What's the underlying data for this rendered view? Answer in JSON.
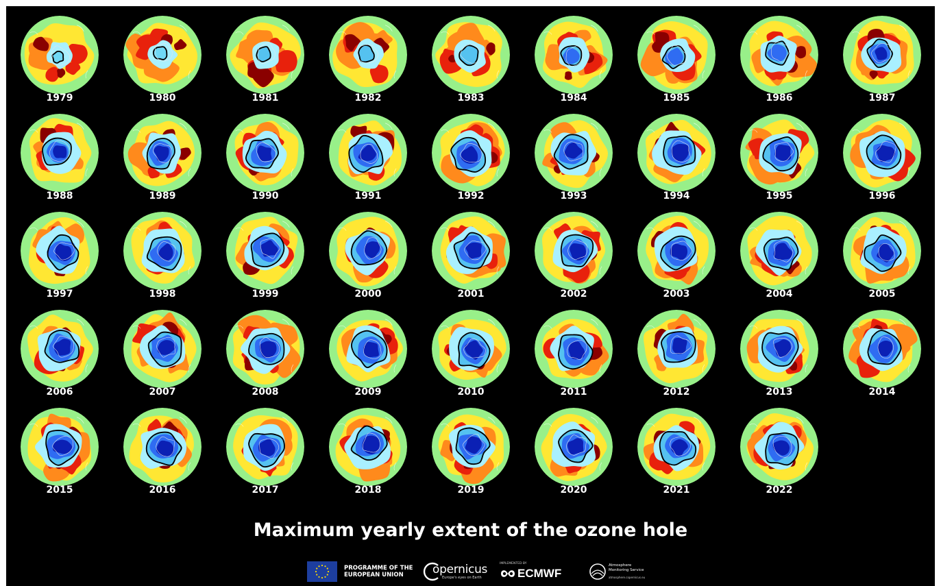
{
  "title": "Maximum yearly extent of the ozone hole",
  "years": [
    "1979",
    "1980",
    "1981",
    "1982",
    "1983",
    "1984",
    "1985",
    "1986",
    "1987",
    "1988",
    "1989",
    "1990",
    "1991",
    "1992",
    "1993",
    "1994",
    "1995",
    "1996",
    "1997",
    "1998",
    "1999",
    "2000",
    "2001",
    "2002",
    "2003",
    "2004",
    "2005",
    "2006",
    "2007",
    "2008",
    "2009",
    "2010",
    "2011",
    "2012",
    "2013",
    "2014",
    "2015",
    "2016",
    "2017",
    "2018",
    "2019",
    "2020",
    "2021",
    "2022"
  ],
  "colors": {
    "background": "#000000",
    "rim": "#98f089",
    "yellow": "#ffe733",
    "orange": "#ff8a1c",
    "red": "#e8210c",
    "dark_red": "#8a0000",
    "light_blue": "#55c2f0",
    "mid_blue": "#2f6cf2",
    "deep_blue": "#0b20b4"
  },
  "footer": {
    "eu_line1": "PROGRAMME OF THE",
    "eu_line2": "EUROPEAN UNION",
    "copernicus_name": "opernicus",
    "copernicus_tagline": "Europe's eyes on Earth",
    "ecmwf_implemented": "IMPLEMENTED BY",
    "ecmwf_name": "ECMWF",
    "cams_line1": "Atmosphere",
    "cams_line2": "Monitoring Service",
    "cams_url": "atmosphere.copernicus.eu"
  }
}
